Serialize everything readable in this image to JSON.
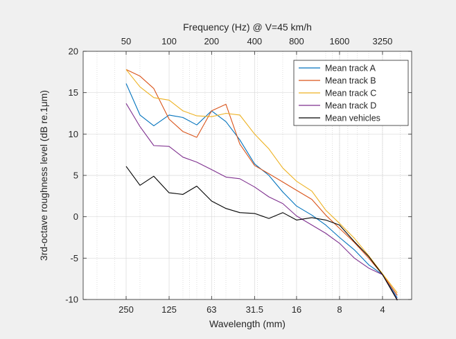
{
  "chart_data": {
    "type": "line",
    "xlabel": "Wavelength (mm)",
    "ylabel": "3rd-octave roughness level (dB re.1μm)",
    "top_axis_label": "Frequency (Hz) @ V=45 km/h",
    "x_scale": "log",
    "x_direction": "reversed",
    "xlim": [
      2.5,
      500
    ],
    "ylim": [
      -10,
      20
    ],
    "grid": true,
    "legend_position": "top-right",
    "x_ticks": [
      250,
      125,
      63,
      31.5,
      16,
      8,
      4
    ],
    "x_tick_labels": [
      "250",
      "125",
      "63",
      "31.5",
      "16",
      "8",
      "4"
    ],
    "y_ticks": [
      -10,
      -5,
      0,
      5,
      10,
      15,
      20
    ],
    "top_ticks": [
      50,
      100,
      200,
      400,
      800,
      1600,
      3250
    ],
    "x": [
      250,
      200,
      160,
      125,
      100,
      80,
      63,
      50,
      40,
      31.5,
      25,
      20,
      16,
      12.5,
      10,
      8,
      6.3,
      5,
      4,
      3.15
    ],
    "series": [
      {
        "name": "Mean track A",
        "color": "#0072bd",
        "values": [
          16.1,
          12.3,
          11.0,
          12.3,
          12.0,
          11.1,
          12.8,
          11.5,
          9.3,
          6.4,
          5.0,
          3.0,
          1.3,
          0.2,
          -1.0,
          -2.5,
          -4.0,
          -5.8,
          -7.0,
          -9.8
        ]
      },
      {
        "name": "Mean track B",
        "color": "#d95319",
        "values": [
          17.8,
          17.0,
          15.5,
          11.8,
          10.3,
          9.6,
          12.8,
          13.6,
          8.8,
          6.2,
          5.2,
          4.2,
          3.2,
          2.1,
          0.2,
          -1.4,
          -3.1,
          -5.0,
          -7.0,
          -9.5
        ]
      },
      {
        "name": "Mean track C",
        "color": "#edb120",
        "values": [
          17.8,
          15.7,
          14.4,
          14.1,
          12.8,
          12.2,
          12.1,
          12.5,
          12.3,
          10.0,
          8.2,
          5.9,
          4.3,
          3.1,
          0.8,
          -0.8,
          -2.6,
          -4.7,
          -6.9,
          -9.2
        ]
      },
      {
        "name": "Mean track D",
        "color": "#7e2f8e",
        "values": [
          13.7,
          10.9,
          8.6,
          8.5,
          7.2,
          6.6,
          5.7,
          4.8,
          4.6,
          3.6,
          2.4,
          1.6,
          0.1,
          -1.0,
          -2.0,
          -3.2,
          -5.0,
          -6.2,
          -7.0,
          -10.0
        ]
      },
      {
        "name": "Mean vehicles",
        "color": "#000000",
        "values": [
          6.1,
          3.8,
          4.9,
          2.9,
          2.7,
          3.7,
          1.9,
          1.0,
          0.5,
          0.4,
          -0.2,
          0.5,
          -0.4,
          -0.1,
          -0.4,
          -1.0,
          -3.0,
          -4.8,
          -7.0,
          -10.1
        ]
      }
    ]
  }
}
